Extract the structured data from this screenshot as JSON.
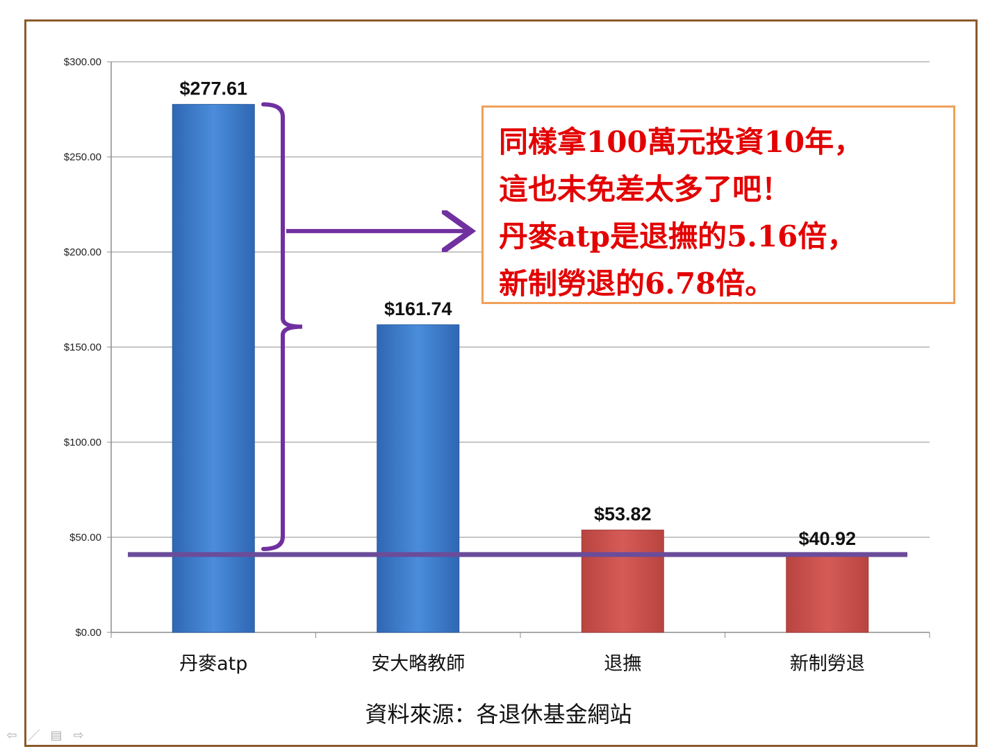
{
  "chart_data": {
    "type": "bar",
    "categories": [
      "丹麥atp",
      "安大略教師",
      "退撫",
      "新制勞退"
    ],
    "values": [
      277.61,
      161.74,
      53.82,
      40.92
    ],
    "value_labels": [
      "$277.61",
      "$161.74",
      "$53.82",
      "$40.92"
    ],
    "bar_colors": [
      "#3F7FD0",
      "#3F7FD0",
      "#D0504D",
      "#D0504D"
    ],
    "ylim": [
      0,
      300
    ],
    "yticks": [
      0,
      50,
      100,
      150,
      200,
      250,
      300
    ],
    "ytick_labels": [
      "$0.00",
      "$50.00",
      "$100.00",
      "$150.00",
      "$200.00",
      "$250.00",
      "$300.00"
    ],
    "grid": true,
    "reference_line": {
      "value": 40.92,
      "color": "#6B4C9A"
    },
    "bracket": {
      "from": 40.92,
      "to": 277.61,
      "color": "#7030A0"
    }
  },
  "callout": {
    "lines": [
      "同樣拿100萬元投資10年，",
      "這也未免差太多了吧！",
      "丹麥atp是退撫的5.16倍，",
      "新制勞退的6.78倍。"
    ],
    "text_color": "#E30000",
    "border_color": "#F0A05A"
  },
  "source": "資料來源：各退休基金網站",
  "nav": {
    "prev": "⇦",
    "pen": "／",
    "menu": "▤",
    "next": "⇨"
  }
}
